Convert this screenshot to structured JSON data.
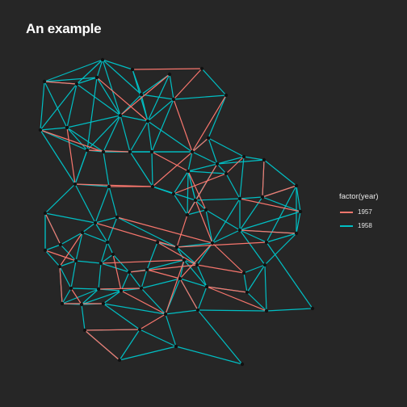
{
  "title": "An example",
  "legend": {
    "title": "factor(year)",
    "items": [
      {
        "label": "1957",
        "color": "#f8766d"
      },
      {
        "label": "1958",
        "color": "#00bfc4"
      }
    ]
  },
  "colors": {
    "background": "#262626",
    "node": "#111111",
    "edge_1957": "#f8766d",
    "edge_1958": "#00bfc4"
  }
}
